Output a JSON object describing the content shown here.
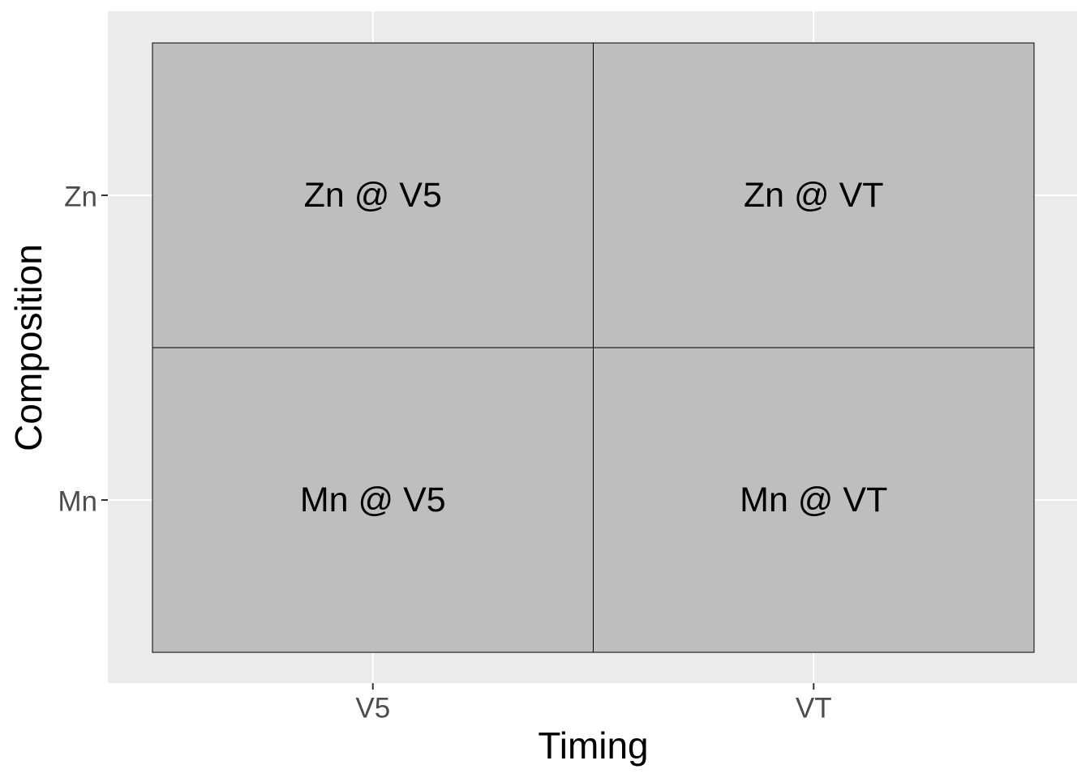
{
  "chart_data": {
    "type": "heatmap",
    "title": "",
    "xlabel": "Timing",
    "ylabel": "Composition",
    "x_categories": [
      "V5",
      "VT"
    ],
    "y_categories": [
      "Mn",
      "Zn"
    ],
    "cells": [
      {
        "x": "V5",
        "y": "Zn",
        "label": "Zn @ V5"
      },
      {
        "x": "VT",
        "y": "Zn",
        "label": "Zn @ VT"
      },
      {
        "x": "V5",
        "y": "Mn",
        "label": "Mn @ V5"
      },
      {
        "x": "VT",
        "y": "Mn",
        "label": "Mn @ VT"
      }
    ],
    "grid": true,
    "legend": "none",
    "colors": {
      "panel_background": "#EBEBEB",
      "grid_line": "#FFFFFF",
      "tile_fill": "#BEBEBE",
      "tile_border": "#000000",
      "tick_label": "#4D4D4D",
      "axis_title": "#000000",
      "cell_label": "#000000"
    }
  }
}
